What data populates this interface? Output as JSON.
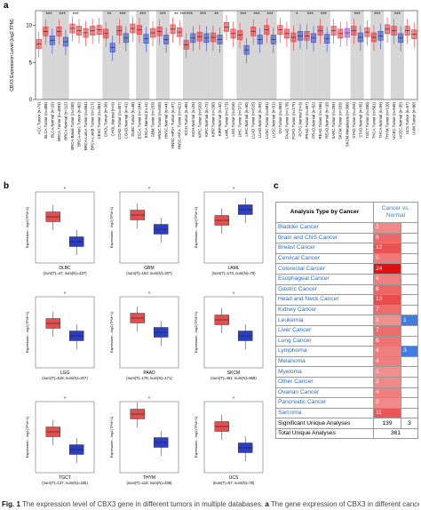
{
  "panel_labels": [
    "a",
    "b",
    "c"
  ],
  "chart_data": [
    {
      "type": "box",
      "y_label": "CBX3 Expression Level (log2 TPM)",
      "categories": [
        "ACC.Tumor (n=79)",
        "BLCA.Tumor (n=408)",
        "BLCA.Normal (n=19)",
        "BRCA.Tumor (n=1093)",
        "BRCA.Normal (n=112)",
        "BRCA-Basal.Tumor (n=190)",
        "BRCA-Her2.Tumor (n=82)",
        "BRCA-LumA.Tumor (n=564)",
        "BRCA-LumB.Tumor (n=217)",
        "CESC.Tumor (n=304)",
        "CHOL.Tumor (n=36)",
        "CHOL.Normal (n=9)",
        "COAD.Tumor (n=457)",
        "COAD.Normal (n=41)",
        "DLBC.Tumor (n=48)",
        "ESCA.Tumor (n=184)",
        "ESCA.Normal (n=11)",
        "GBM.Tumor (n=153)",
        "HNSC.Tumor (n=520)",
        "HNSC.Normal (n=44)",
        "HNSC-HPV+.Tumor (n=97)",
        "HNSC-HPV-.Tumor (n=421)",
        "KICH.Tumor (n=66)",
        "KICH.Normal (n=25)",
        "KIRC.Tumor (n=533)",
        "KIRC.Normal (n=72)",
        "KIRP.Tumor (n=290)",
        "KIRP.Normal (n=32)",
        "LAML.Tumor (n=173)",
        "LGG.Tumor (n=516)",
        "LIHC.Tumor (n=371)",
        "LIHC.Normal (n=50)",
        "LUAD.Tumor (n=515)",
        "LUAD.Normal (n=59)",
        "LUSC.Tumor (n=501)",
        "LUSC.Normal (n=51)",
        "OV.Tumor (n=303)",
        "PAAD.Tumor (n=178)",
        "PCPG.Tumor (n=179)",
        "PCPG.Normal (n=3)",
        "PRAD.Tumor (n=497)",
        "PRAD.Normal (n=52)",
        "READ.Tumor (n=166)",
        "READ.Normal (n=10)",
        "SARC.Tumor (n=259)",
        "SKCM.Tumor (n=103)",
        "SKCM.Metastasis (n=368)",
        "STAD.Tumor (n=415)",
        "STAD.Normal (n=35)",
        "TGCT.Tumor (n=150)",
        "THCA.Tumor (n=501)",
        "THCA.Normal (n=59)",
        "THYM.Tumor (n=120)",
        "UCEC.Tumor (n=545)",
        "UCEC.Normal (n=35)",
        "UCS.Tumor (n=57)",
        "UVM.Tumor (n=80)"
      ],
      "values": [
        7.5,
        9.2,
        8.0,
        9.2,
        7.8,
        9.6,
        9.3,
        9.0,
        9.3,
        9.4,
        8.9,
        7.0,
        9.3,
        8.3,
        9.6,
        9.4,
        8.2,
        9.0,
        9.2,
        8.1,
        9.5,
        9.1,
        7.4,
        8.3,
        8.5,
        8.3,
        8.4,
        8.1,
        9.8,
        8.9,
        8.7,
        6.7,
        9.2,
        8.1,
        9.4,
        8.1,
        9.4,
        8.9,
        8.4,
        8.6,
        8.6,
        8.3,
        9.3,
        8.2,
        9.3,
        8.9,
        9.0,
        9.3,
        8.4,
        9.1,
        8.4,
        8.6,
        9.5,
        9.3,
        8.3,
        9.3,
        8.8
      ],
      "significance": [
        null,
        "***",
        null,
        "***",
        null,
        "***",
        null,
        null,
        null,
        null,
        "**",
        null,
        "***",
        null,
        null,
        "***",
        null,
        null,
        "***",
        null,
        "**",
        "***",
        "***",
        null,
        "***",
        null,
        "**",
        null,
        null,
        null,
        "***",
        null,
        "***",
        null,
        "***",
        null,
        null,
        null,
        "*",
        null,
        "***",
        null,
        "***",
        null,
        null,
        null,
        null,
        "***",
        null,
        null,
        "***",
        null,
        null,
        "***",
        null,
        null,
        null
      ],
      "palette": {
        "Tumor": "#e8383d",
        "Normal": "#3453d6",
        "Metastasis": "#a24bd2"
      },
      "ylim": [
        0,
        12
      ],
      "yticks": [
        0,
        5,
        10
      ]
    },
    {
      "type": "box",
      "title": "DLBC",
      "x_label": "(num(T)=47; num(N)=337)",
      "y_label": "Expression - log2(TPM+1)",
      "values": [
        7.2,
        4.4
      ],
      "colors": [
        "#e0504f",
        "#2c3fc2"
      ],
      "significance": "*",
      "ylim": [
        2,
        10
      ]
    },
    {
      "type": "box",
      "title": "GBM",
      "x_label": "(num(T)=163; num(N)=207)",
      "y_label": "Expression - log2(TPM+1)",
      "values": [
        7.4,
        5.8
      ],
      "colors": [
        "#e0504f",
        "#2c3fc2"
      ],
      "significance": "*",
      "ylim": [
        2,
        10
      ]
    },
    {
      "type": "box",
      "title": "LAML",
      "x_label": "(num(T)=173; num(N)=70)",
      "y_label": "Expression - log2(TPM+1)",
      "values": [
        6.8,
        8.0
      ],
      "colors": [
        "#e0504f",
        "#2c3fc2"
      ],
      "significance": "*",
      "ylim": [
        2,
        10
      ]
    },
    {
      "type": "box",
      "title": "LGG",
      "x_label": "(num(T)=518; num(N)=207)",
      "y_label": "Expression - log2(TPM+1)",
      "values": [
        7.0,
        5.6
      ],
      "colors": [
        "#e0504f",
        "#2c3fc2"
      ],
      "significance": "*",
      "ylim": [
        2,
        10
      ]
    },
    {
      "type": "box",
      "title": "PAAD",
      "x_label": "(num(T)=179; num(N)=171)",
      "y_label": "Expression - log2(TPM+1)",
      "values": [
        7.6,
        6.0
      ],
      "colors": [
        "#e0504f",
        "#2c3fc2"
      ],
      "significance": "*",
      "ylim": [
        2,
        10
      ]
    },
    {
      "type": "box",
      "title": "SKCM",
      "x_label": "(num(T)=461; num(N)=558)",
      "y_label": "Expression - log2(TPM+1)",
      "values": [
        7.4,
        5.6
      ],
      "colors": [
        "#e0504f",
        "#2c3fc2"
      ],
      "significance": "*",
      "ylim": [
        2,
        10
      ]
    },
    {
      "type": "box",
      "title": "TGCT",
      "x_label": "(num(T)=137; num(N)=165)",
      "y_label": "Expression - log2(TPM+1)",
      "values": [
        6.6,
        4.6
      ],
      "colors": [
        "#e0504f",
        "#2c3fc2"
      ],
      "significance": "*",
      "ylim": [
        2,
        10
      ]
    },
    {
      "type": "box",
      "title": "THYM",
      "x_label": "(num(T)=118; num(N)=339)",
      "y_label": "Expression - log2(TPM+1)",
      "values": [
        8.6,
        5.4
      ],
      "colors": [
        "#e0504f",
        "#2c3fc2"
      ],
      "significance": "*",
      "ylim": [
        2,
        10
      ]
    },
    {
      "type": "box",
      "title": "UCS",
      "x_label": "(num(T)=57; num(N)=78)",
      "y_label": "Expression - log2(TPM+1)",
      "values": [
        7.2,
        4.8
      ],
      "colors": [
        "#e0504f",
        "#2c3fc2"
      ],
      "significance": "*",
      "ylim": [
        2,
        10
      ]
    }
  ],
  "table": {
    "header": [
      "Analysis Type by Cancer",
      "Cancer vs. Normal"
    ],
    "rows": [
      [
        "Bladder Cancer",
        2,
        null
      ],
      [
        "Brain and CNS Cancer",
        8,
        null
      ],
      [
        "Breast Cancer",
        12,
        null
      ],
      [
        "Cervical Cancer",
        5,
        null
      ],
      [
        "Colorectal Cancer",
        24,
        null
      ],
      [
        "Esophageal Cancer",
        4,
        null
      ],
      [
        "Gastric Cancer",
        8,
        null
      ],
      [
        "Head and Neck Cancer",
        13,
        null
      ],
      [
        "Kidney Cancer",
        7,
        null
      ],
      [
        "Leukemia",
        1,
        1
      ],
      [
        "Liver Cancer",
        7,
        null
      ],
      [
        "Lung Cancer",
        6,
        null
      ],
      [
        "Lymphoma",
        4,
        3
      ],
      [
        "Melanoma",
        4,
        null
      ],
      [
        "Myeloma",
        1,
        null
      ],
      [
        "Other Cancer",
        2,
        null
      ],
      [
        "Ovarian Cancer",
        4,
        null
      ],
      [
        "Pancreatic Cancer",
        2,
        null
      ],
      [
        "Sarcoma",
        11,
        null
      ]
    ],
    "footer": [
      [
        "Significant Unique Analyses",
        139,
        3
      ],
      [
        "Total Unique Analyses",
        361
      ]
    ]
  },
  "caption": [
    "Fig. 1",
    "The expression level of CBX3 gene in different tumors in multiple databases.",
    "a",
    "The gene expression of CBX3 in different cancers in TCGA"
  ]
}
